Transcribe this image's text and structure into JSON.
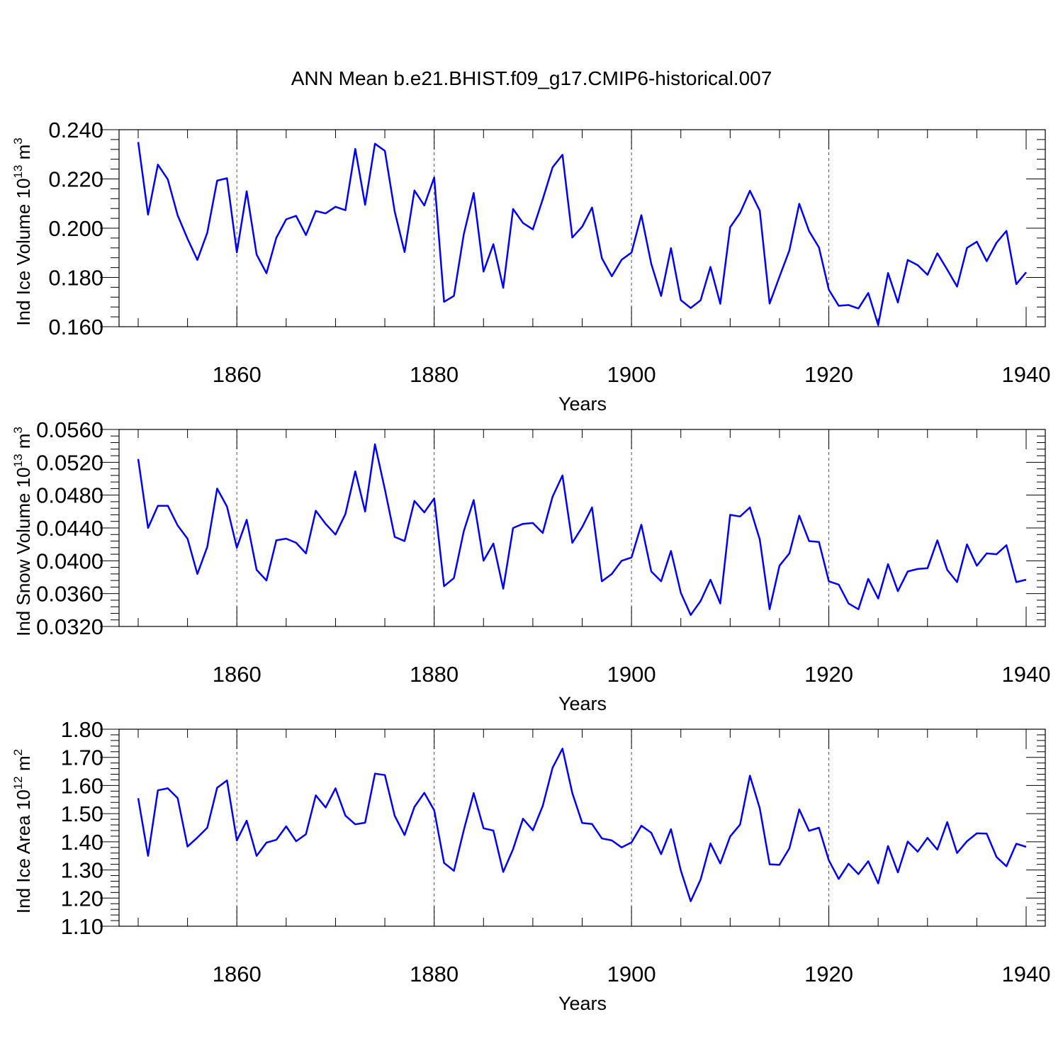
{
  "figure": {
    "title": "ANN Mean b.e21.BHIST.f09_g17.CMIP6-historical.007"
  },
  "chart_data": [
    {
      "type": "line",
      "panel": "ice-volume",
      "ylabel_main": "Ind Ice Volume 10",
      "ylabel_exp": "13",
      "ylabel_unit": " m",
      "ylabel_unit_exp": "3",
      "xlabel": "Years",
      "xlim": [
        1850,
        1940
      ],
      "ylim": [
        0.16,
        0.24
      ],
      "xticks": [
        1860,
        1880,
        1900,
        1920,
        1940
      ],
      "yticks": [
        "0.160",
        "0.180",
        "0.200",
        "0.220",
        "0.240"
      ],
      "ytick_values": [
        0.16,
        0.18,
        0.2,
        0.22,
        0.24
      ],
      "color": "#0000ff",
      "series": [
        {
          "name": "Ind Ice Volume",
          "x_start": 1850,
          "values": [
            0.235,
            0.2055,
            0.2258,
            0.2198,
            0.2052,
            0.1957,
            0.1871,
            0.1982,
            0.2193,
            0.2203,
            0.1902,
            0.215,
            0.1893,
            0.1817,
            0.1961,
            0.2036,
            0.205,
            0.1972,
            0.207,
            0.206,
            0.2087,
            0.2073,
            0.2322,
            0.2095,
            0.2343,
            0.2314,
            0.2067,
            0.1903,
            0.2153,
            0.2092,
            0.2206,
            0.1701,
            0.1725,
            0.1975,
            0.2143,
            0.1824,
            0.1935,
            0.1758,
            0.2078,
            0.2021,
            0.1995,
            0.2117,
            0.2247,
            0.2298,
            0.1962,
            0.2006,
            0.2084,
            0.1878,
            0.1805,
            0.1872,
            0.1901,
            0.2053,
            0.1855,
            0.1725,
            0.1919,
            0.1708,
            0.1676,
            0.1707,
            0.1843,
            0.1693,
            0.2004,
            0.2062,
            0.2152,
            0.2071,
            0.1694,
            0.1803,
            0.191,
            0.2099,
            0.1988,
            0.1922,
            0.175,
            0.1685,
            0.1688,
            0.1674,
            0.1737,
            0.1607,
            0.1818,
            0.1698,
            0.1871,
            0.185,
            0.1811,
            0.1898,
            0.1832,
            0.1763,
            0.192,
            0.1945,
            0.1866,
            0.1941,
            0.1989,
            0.1773,
            0.1821
          ]
        }
      ]
    },
    {
      "type": "line",
      "panel": "snow-volume",
      "ylabel_main": "Ind Snow Volume 10",
      "ylabel_exp": "13",
      "ylabel_unit": " m",
      "ylabel_unit_exp": "3",
      "xlabel": "Years",
      "xlim": [
        1850,
        1940
      ],
      "ylim": [
        0.032,
        0.056
      ],
      "xticks": [
        1860,
        1880,
        1900,
        1920,
        1940
      ],
      "yticks": [
        "0.0320",
        "0.0360",
        "0.0400",
        "0.0440",
        "0.0480",
        "0.0520",
        "0.0560"
      ],
      "ytick_values": [
        0.032,
        0.036,
        0.04,
        0.044,
        0.048,
        0.052,
        0.056
      ],
      "color": "#0000ff",
      "series": [
        {
          "name": "Ind Snow Volume",
          "x_start": 1850,
          "values": [
            0.0524,
            0.044,
            0.0467,
            0.0467,
            0.0443,
            0.0427,
            0.0384,
            0.0417,
            0.0488,
            0.0466,
            0.0416,
            0.045,
            0.0389,
            0.0376,
            0.0425,
            0.0427,
            0.0422,
            0.0409,
            0.0461,
            0.0445,
            0.0432,
            0.0457,
            0.0509,
            0.046,
            0.0542,
            0.0487,
            0.0429,
            0.0424,
            0.0473,
            0.0459,
            0.0476,
            0.0369,
            0.0379,
            0.0436,
            0.0474,
            0.04,
            0.0421,
            0.0366,
            0.044,
            0.0445,
            0.0446,
            0.0434,
            0.0478,
            0.0504,
            0.0422,
            0.0441,
            0.0465,
            0.0375,
            0.0384,
            0.04,
            0.0404,
            0.0444,
            0.0387,
            0.0375,
            0.0412,
            0.0361,
            0.0334,
            0.0351,
            0.0377,
            0.0348,
            0.0456,
            0.0454,
            0.0465,
            0.0426,
            0.0341,
            0.0394,
            0.0409,
            0.0455,
            0.0424,
            0.0423,
            0.0375,
            0.0371,
            0.0348,
            0.0341,
            0.0378,
            0.0354,
            0.0396,
            0.0363,
            0.0387,
            0.039,
            0.0391,
            0.0425,
            0.0389,
            0.0374,
            0.042,
            0.0394,
            0.0409,
            0.0408,
            0.0419,
            0.0374,
            0.0377
          ]
        }
      ]
    },
    {
      "type": "line",
      "panel": "ice-area",
      "ylabel_main": "Ind Ice Area 10",
      "ylabel_exp": "12",
      "ylabel_unit": " m",
      "ylabel_unit_exp": "2",
      "xlabel": "Years",
      "xlim": [
        1850,
        1940
      ],
      "ylim": [
        1.1,
        1.8
      ],
      "xticks": [
        1860,
        1880,
        1900,
        1920,
        1940
      ],
      "yticks": [
        "1.10",
        "1.20",
        "1.30",
        "1.40",
        "1.50",
        "1.60",
        "1.70",
        "1.80"
      ],
      "ytick_values": [
        1.1,
        1.2,
        1.3,
        1.4,
        1.5,
        1.6,
        1.7,
        1.8
      ],
      "color": "#0000ff",
      "series": [
        {
          "name": "Ind Ice Area",
          "x_start": 1850,
          "values": [
            1.555,
            1.35,
            1.583,
            1.59,
            1.555,
            1.383,
            1.415,
            1.45,
            1.592,
            1.618,
            1.405,
            1.475,
            1.35,
            1.397,
            1.407,
            1.455,
            1.402,
            1.427,
            1.565,
            1.522,
            1.59,
            1.493,
            1.462,
            1.468,
            1.642,
            1.637,
            1.492,
            1.424,
            1.524,
            1.574,
            1.512,
            1.325,
            1.297,
            1.441,
            1.573,
            1.448,
            1.44,
            1.293,
            1.374,
            1.482,
            1.441,
            1.527,
            1.663,
            1.731,
            1.573,
            1.467,
            1.463,
            1.412,
            1.405,
            1.38,
            1.398,
            1.457,
            1.432,
            1.356,
            1.445,
            1.298,
            1.189,
            1.266,
            1.394,
            1.323,
            1.419,
            1.461,
            1.635,
            1.519,
            1.32,
            1.318,
            1.377,
            1.515,
            1.439,
            1.45,
            1.334,
            1.268,
            1.322,
            1.285,
            1.331,
            1.252,
            1.385,
            1.291,
            1.401,
            1.365,
            1.414,
            1.372,
            1.47,
            1.36,
            1.402,
            1.43,
            1.429,
            1.346,
            1.313,
            1.393,
            1.382
          ]
        }
      ]
    }
  ]
}
